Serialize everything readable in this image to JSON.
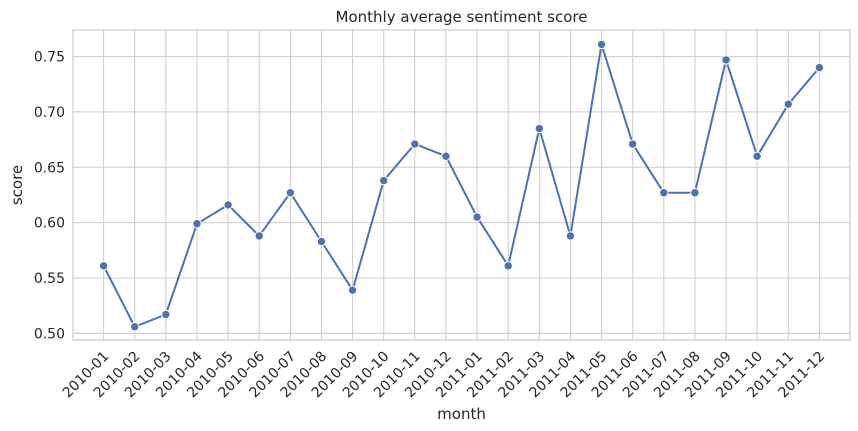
{
  "chart_data": {
    "type": "line",
    "title": "Monthly average sentiment score",
    "xlabel": "month",
    "ylabel": "score",
    "ylim": [
      0.494,
      0.774
    ],
    "yticks": [
      0.5,
      0.55,
      0.6,
      0.65,
      0.7,
      0.75
    ],
    "ytick_labels": [
      "0.50",
      "0.55",
      "0.60",
      "0.65",
      "0.70",
      "0.75"
    ],
    "grid": true,
    "color": "#4c72b0",
    "categories": [
      "2010-01",
      "2010-02",
      "2010-03",
      "2010-04",
      "2010-05",
      "2010-06",
      "2010-07",
      "2010-08",
      "2010-09",
      "2010-10",
      "2010-11",
      "2010-12",
      "2011-01",
      "2011-02",
      "2011-03",
      "2011-04",
      "2011-05",
      "2011-06",
      "2011-07",
      "2011-08",
      "2011-09",
      "2011-10",
      "2011-11",
      "2011-12"
    ],
    "series": [
      {
        "values": [
          0.561,
          0.506,
          0.517,
          0.599,
          0.616,
          0.588,
          0.627,
          0.583,
          0.539,
          0.638,
          0.671,
          0.66,
          0.605,
          0.561,
          0.685,
          0.588,
          0.761,
          0.671,
          0.627,
          0.627,
          0.747,
          0.66,
          0.707,
          0.74
        ]
      }
    ]
  }
}
